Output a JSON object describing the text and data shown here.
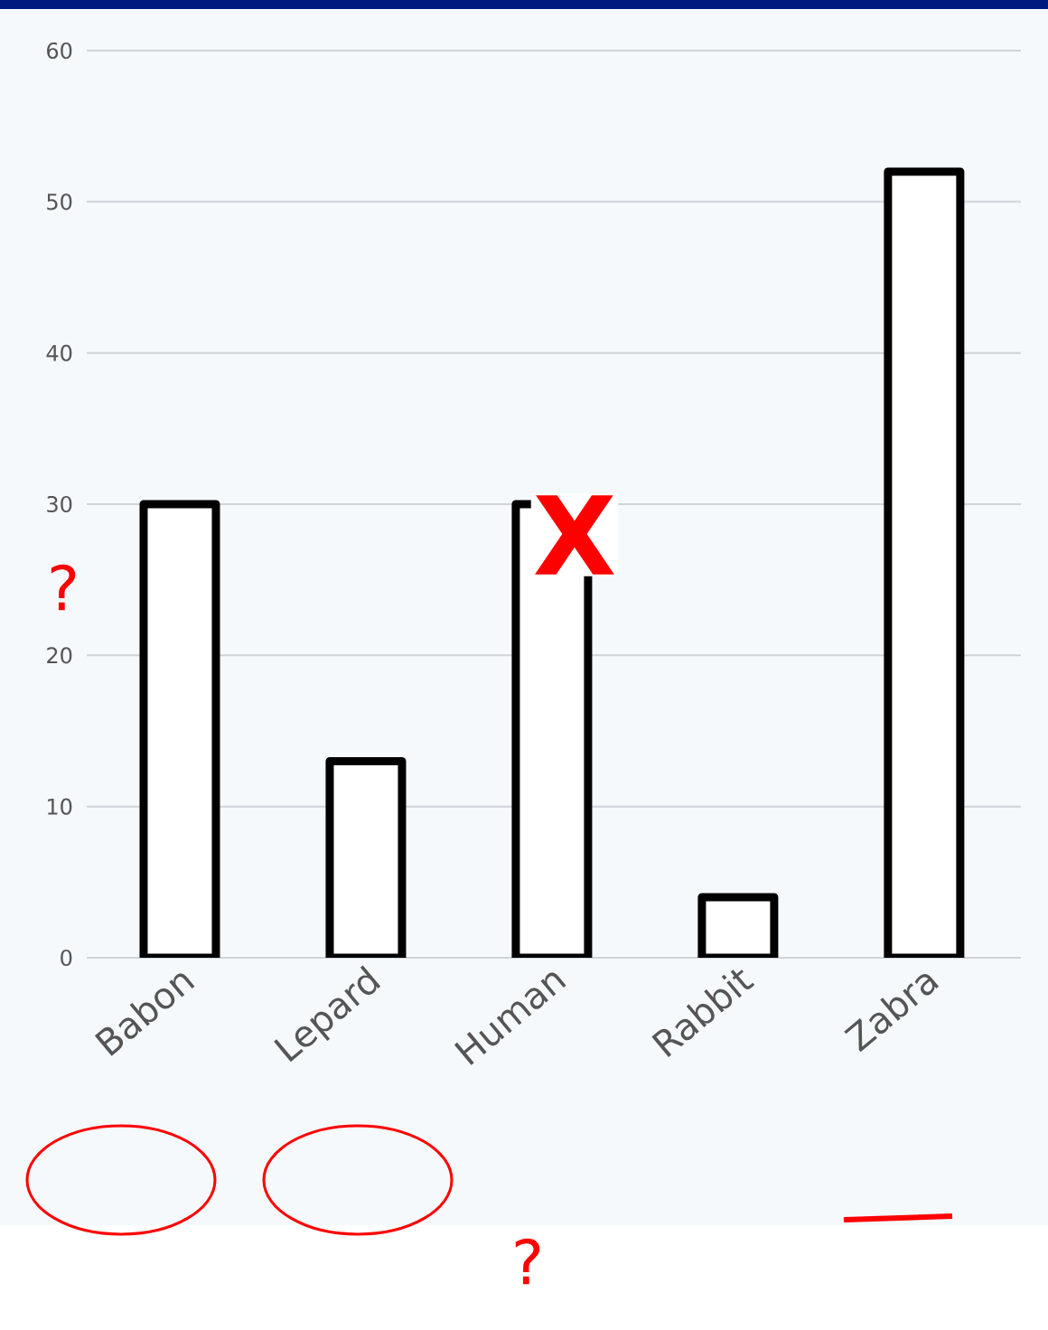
{
  "chart_data": {
    "type": "bar",
    "categories": [
      "Babon",
      "Lepard",
      "Human",
      "Rabbit",
      "Zabra"
    ],
    "values": [
      30,
      13,
      30,
      4,
      52
    ],
    "color": "#ffffff",
    "ylim": [
      0,
      60
    ],
    "yticks": [
      0,
      10,
      20,
      30,
      40,
      50,
      60
    ],
    "grid": "y",
    "annotations": [
      "?",
      "X",
      "?"
    ]
  }
}
